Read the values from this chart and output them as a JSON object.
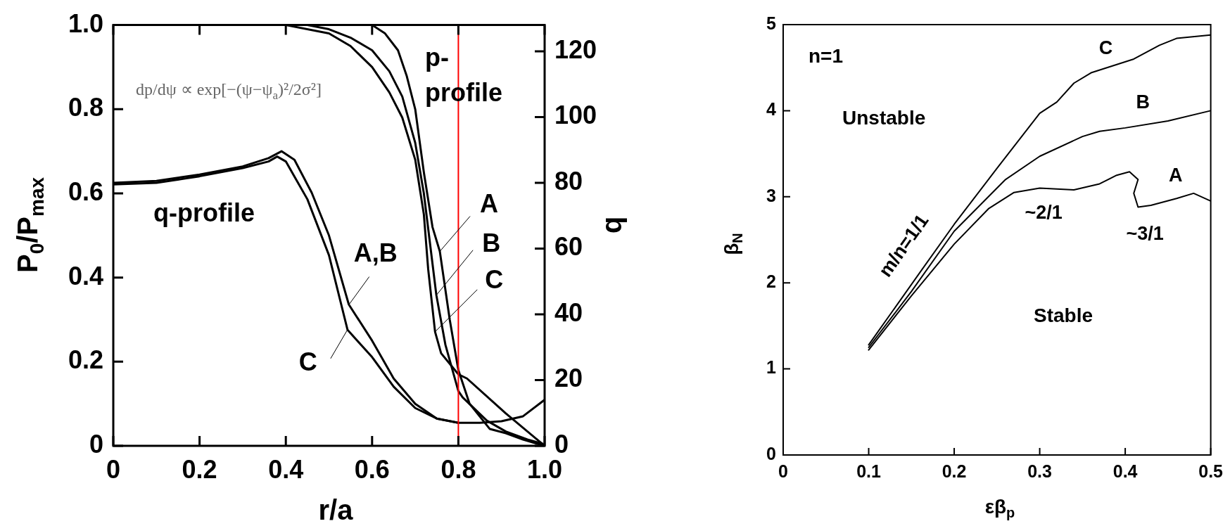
{
  "chart_data": [
    {
      "type": "line",
      "xlabel": "r/a",
      "ylabel": "P$_{0}$/P$_{max}$",
      "y2label": "q",
      "xlim": [
        0,
        1
      ],
      "xticks": [
        0,
        0.2,
        0.4,
        0.6,
        0.8,
        {
          "value": 1,
          "label": "1.0"
        }
      ],
      "ylim": [
        0,
        1
      ],
      "yticks": [
        0,
        0.2,
        0.4,
        0.6,
        0.8,
        {
          "value": 1,
          "label": "1.0"
        }
      ],
      "y2lim": [
        0,
        128
      ],
      "y2ticks": [
        0,
        20,
        40,
        60,
        80,
        100,
        120
      ],
      "series": [
        {
          "color": "#000000",
          "x": [
            0.5,
            0.6,
            0.63,
            0.66,
            0.68,
            0.7,
            0.72,
            0.74,
            0.757,
            0.78,
            0.8,
            0.826,
            0.873,
            0.91,
            0.95,
            1
          ],
          "values": [
            1,
            1,
            0.98,
            0.94,
            0.88,
            0.8,
            0.65,
            0.52,
            0.462,
            0.3,
            0.18,
            0.1,
            0.04,
            0.03,
            0.015,
            0
          ]
        },
        {
          "color": "#000000",
          "x": [
            0.45,
            0.5,
            0.55,
            0.6,
            0.64,
            0.67,
            0.7,
            0.72,
            0.749,
            0.77,
            0.8,
            0.81,
            0.866,
            0.91,
            0.96,
            0.995
          ],
          "values": [
            1,
            0.99,
            0.97,
            0.94,
            0.89,
            0.83,
            0.72,
            0.6,
            0.358,
            0.24,
            0.13,
            0.115,
            0.06,
            0.034,
            0.015,
            0.005
          ]
        },
        {
          "color": "#000000",
          "x": [
            0.4,
            0.5,
            0.55,
            0.6,
            0.64,
            0.67,
            0.7,
            0.72,
            0.73,
            0.746,
            0.76,
            0.8,
            0.82,
            0.91,
            1
          ],
          "values": [
            1,
            0.98,
            0.95,
            0.9,
            0.84,
            0.78,
            0.68,
            0.55,
            0.42,
            0.271,
            0.22,
            0.17,
            0.16,
            0.077,
            0
          ]
        },
        {
          "color": "#000000",
          "axis": "y2",
          "x": [
            0,
            0.1,
            0.2,
            0.3,
            0.36,
            0.39,
            0.42,
            0.46,
            0.5,
            0.546,
            0.6,
            0.65,
            0.7,
            0.75,
            0.8,
            0.85,
            0.9,
            0.95,
            1
          ],
          "values": [
            80,
            80.6,
            82.5,
            85,
            87.5,
            89.6,
            87,
            77,
            64,
            43,
            32,
            20.5,
            12.8,
            8.3,
            7,
            7,
            7.5,
            9,
            14
          ]
        },
        {
          "color": "#000000",
          "axis": "y2",
          "x": [
            0,
            0.1,
            0.2,
            0.3,
            0.36,
            0.38,
            0.4,
            0.45,
            0.5,
            0.543,
            0.6,
            0.65,
            0.7,
            0.75,
            0.8
          ],
          "values": [
            79.5,
            80,
            82,
            84.5,
            86.5,
            88,
            86.5,
            75,
            58,
            35.3,
            27,
            18,
            11.5,
            8.3,
            7
          ]
        }
      ],
      "ref_lines": [
        {
          "axis": "x",
          "value": 0.8,
          "color": "#ff0000"
        }
      ],
      "annotations": [
        "dp/dψ ∝ exp[−(ψ−ψ$_{a}$)²/2σ²]",
        "p-profile",
        "q-profile",
        {
          "text": "A",
          "x": 0.757,
          "y": 0.462
        },
        {
          "text": "B",
          "x": 0.749,
          "y": 0.358
        },
        {
          "text": "C",
          "x": 0.746,
          "y": 0.271
        },
        {
          "text": "A,B",
          "x": 0.546,
          "y": 0.335
        },
        {
          "text": "C",
          "x": 0.543,
          "y": 0.276
        }
      ]
    },
    {
      "type": "line",
      "xlabel": "εβ$_{p}$",
      "ylabel": "β$_{N}$",
      "xlim": [
        0,
        0.5
      ],
      "xticks": [
        0,
        0.1,
        0.2,
        0.3,
        0.4,
        0.5
      ],
      "ylim": [
        0,
        5
      ],
      "yticks": [
        0,
        1,
        2,
        3,
        4,
        5
      ],
      "series": [
        {
          "color": "#000000",
          "x": [
            0.1,
            0.15,
            0.2,
            0.24,
            0.27,
            0.3,
            0.34,
            0.37,
            0.39,
            0.405,
            0.415,
            0.41,
            0.415,
            0.43,
            0.46,
            0.48,
            0.5
          ],
          "values": [
            1.22,
            1.85,
            2.45,
            2.86,
            3.05,
            3.1,
            3.08,
            3.15,
            3.25,
            3.29,
            3.2,
            3.04,
            2.88,
            2.9,
            2.98,
            3.04,
            2.95
          ]
        },
        {
          "color": "#000000",
          "x": [
            0.1,
            0.15,
            0.2,
            0.26,
            0.3,
            0.35,
            0.37,
            0.4,
            0.45,
            0.5
          ],
          "values": [
            1.25,
            1.9,
            2.6,
            3.2,
            3.47,
            3.7,
            3.76,
            3.8,
            3.88,
            4.0
          ]
        },
        {
          "color": "#000000",
          "x": [
            0.1,
            0.162,
            0.2,
            0.25,
            0.3,
            0.32,
            0.34,
            0.36,
            0.41,
            0.44,
            0.46,
            0.5
          ],
          "values": [
            1.28,
            2.15,
            2.68,
            3.33,
            3.97,
            4.1,
            4.32,
            4.44,
            4.6,
            4.76,
            4.84,
            4.88
          ]
        }
      ],
      "annotations": [
        "n=1",
        "Unstable",
        "Stable",
        {
          "text": "C",
          "x": 0.38,
          "y": 4.5
        },
        {
          "text": "B",
          "x": 0.42,
          "y": 3.85
        },
        {
          "text": "A",
          "x": 0.46,
          "y": 2.98
        },
        {
          "text": "~2/1",
          "x": 0.3,
          "y": 3.1
        },
        {
          "text": "~3/1",
          "x": 0.42,
          "y": 2.88
        },
        {
          "text": "m/n=1/1",
          "x": 0.16,
          "y": 2.05
        }
      ]
    }
  ]
}
